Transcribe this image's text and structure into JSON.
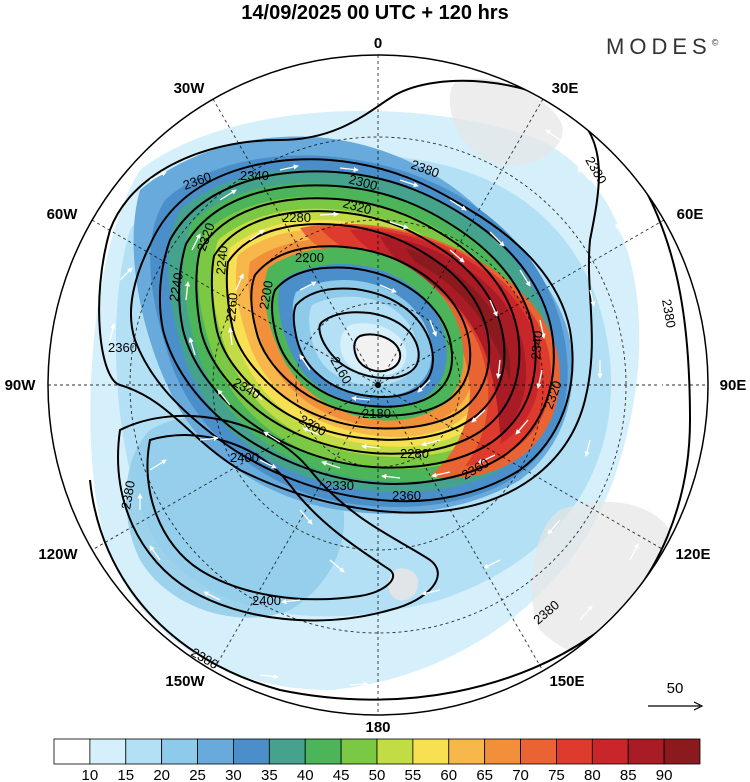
{
  "header": {
    "title": "14/09/2025  00 UTC  + 120 hrs",
    "brand": "MODES",
    "brand_mark": "©"
  },
  "map": {
    "projection": "south-polar-stereographic",
    "longitude_labels": [
      {
        "name": "top",
        "text": "0"
      },
      {
        "name": "30e",
        "text": "30E"
      },
      {
        "name": "60e",
        "text": "60E"
      },
      {
        "name": "90e",
        "text": "90E"
      },
      {
        "name": "120e",
        "text": "120E"
      },
      {
        "name": "150e",
        "text": "150E"
      },
      {
        "name": "180",
        "text": "180"
      },
      {
        "name": "150w",
        "text": "150W"
      },
      {
        "name": "120w",
        "text": "120W"
      },
      {
        "name": "90w",
        "text": "90W"
      },
      {
        "name": "60w",
        "text": "60W"
      },
      {
        "name": "30w",
        "text": "30W"
      }
    ],
    "contour_labels": [
      "2380",
      "2380",
      "2380",
      "2380",
      "2380",
      "2360",
      "2340",
      "2320",
      "2280",
      "2260",
      "2240",
      "2200",
      "2160",
      "2180",
      "2280",
      "2300",
      "2320",
      "2340",
      "2340",
      "2360",
      "2360",
      "2380",
      "2400",
      "2400",
      "2330",
      "2360",
      "2320",
      "2300",
      "2200",
      "2240"
    ],
    "vector_reference": {
      "value": "50"
    },
    "colorbar": {
      "colors": [
        "#ffffff",
        "#d6f0fb",
        "#b3e0f5",
        "#8ecae9",
        "#67aadb",
        "#4a8fca",
        "#45a28c",
        "#4cb55a",
        "#7ac844",
        "#c2dc45",
        "#f7e052",
        "#f7b74a",
        "#f28f3b",
        "#ea6433",
        "#dc3b2e",
        "#c8262b",
        "#aa1c25",
        "#8b1a1f"
      ],
      "ticks": [
        "10",
        "15",
        "20",
        "25",
        "30",
        "35",
        "40",
        "45",
        "50",
        "55",
        "60",
        "65",
        "70",
        "75",
        "80",
        "85",
        "90"
      ]
    }
  }
}
